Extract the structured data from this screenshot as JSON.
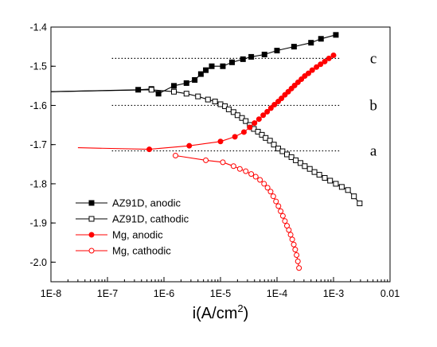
{
  "chart_data": {
    "type": "scatter",
    "title": "",
    "xlabel": "i(A/cm2)",
    "ylabel": "",
    "x_scale": "log",
    "xlim": [
      1e-08,
      0.01
    ],
    "ylim": [
      -2.05,
      -1.4
    ],
    "x_ticks": [
      {
        "value": 1e-08,
        "label": "1E-8"
      },
      {
        "value": 1e-07,
        "label": "1E-7"
      },
      {
        "value": 1e-06,
        "label": "1E-6"
      },
      {
        "value": 1e-05,
        "label": "1E-5"
      },
      {
        "value": 0.0001,
        "label": "1E-4"
      },
      {
        "value": 0.001,
        "label": "1E-3"
      },
      {
        "value": 0.01,
        "label": "0.01"
      }
    ],
    "y_ticks": [
      {
        "value": -1.4,
        "label": "-1.4"
      },
      {
        "value": -1.5,
        "label": "-1.5"
      },
      {
        "value": -1.6,
        "label": "-1.6"
      },
      {
        "value": -1.7,
        "label": "-1.7"
      },
      {
        "value": -1.8,
        "label": "-1.8"
      },
      {
        "value": -1.9,
        "label": "-1.9"
      },
      {
        "value": -2.0,
        "label": "-2.0"
      }
    ],
    "grid": false,
    "legend_position": "bottom-left",
    "reference_lines": [
      {
        "label": "c",
        "y": -1.48,
        "x_from": 1.2e-07,
        "x_to": 0.0013
      },
      {
        "label": "b",
        "y": -1.6,
        "x_from": 1.2e-07,
        "x_to": 0.0013
      },
      {
        "label": "a",
        "y": -1.716,
        "x_from": 1.2e-07,
        "x_to": 0.0013
      }
    ],
    "series": [
      {
        "name": "AZ91D, anodic",
        "color": "#000000",
        "marker": "square",
        "filled": true,
        "line_start": [
          1e-08,
          -1.565
        ],
        "x": [
          3.5e-07,
          6e-07,
          8e-07,
          1.5e-06,
          2.5e-06,
          3.5e-06,
          4.5e-06,
          5.5e-06,
          7e-06,
          1.1e-05,
          1.6e-05,
          2.5e-05,
          3.5e-05,
          6e-05,
          0.0001,
          0.0002,
          0.0004,
          0.0006,
          0.0011
        ],
        "y": [
          -1.56,
          -1.558,
          -1.57,
          -1.55,
          -1.543,
          -1.535,
          -1.52,
          -1.51,
          -1.5,
          -1.5,
          -1.49,
          -1.482,
          -1.476,
          -1.47,
          -1.46,
          -1.45,
          -1.44,
          -1.43,
          -1.42
        ]
      },
      {
        "name": "AZ91D, cathodic",
        "color": "#000000",
        "marker": "square",
        "filled": false,
        "line_start": [
          1e-08,
          -1.565
        ],
        "x": [
          6e-07,
          1.5e-06,
          2.5e-06,
          4e-06,
          6e-06,
          8e-06,
          1e-05,
          1.2e-05,
          1.4e-05,
          1.7e-05,
          2e-05,
          2.4e-05,
          2.8e-05,
          3.3e-05,
          3.9e-05,
          4.6e-05,
          5.4e-05,
          6.3e-05,
          7.5e-05,
          8.8e-05,
          0.000105,
          0.000125,
          0.00015,
          0.00018,
          0.000215,
          0.00026,
          0.00031,
          0.00038,
          0.00046,
          0.00056,
          0.0007,
          0.00087,
          0.0011,
          0.0014,
          0.0018,
          0.0023,
          0.0029
        ],
        "y": [
          -1.56,
          -1.565,
          -1.57,
          -1.577,
          -1.585,
          -1.59,
          -1.597,
          -1.602,
          -1.61,
          -1.617,
          -1.625,
          -1.632,
          -1.64,
          -1.65,
          -1.66,
          -1.667,
          -1.675,
          -1.683,
          -1.69,
          -1.7,
          -1.71,
          -1.717,
          -1.725,
          -1.732,
          -1.74,
          -1.747,
          -1.755,
          -1.762,
          -1.77,
          -1.777,
          -1.785,
          -1.792,
          -1.8,
          -1.808,
          -1.816,
          -1.832,
          -1.85
        ]
      },
      {
        "name": "Mg, anodic",
        "color": "#ff0000",
        "marker": "circle",
        "filled": true,
        "line_start": [
          3e-08,
          -1.708
        ],
        "x": [
          5.5e-07,
          2.8e-06,
          1e-05,
          1.8e-05,
          2.6e-05,
          3.3e-05,
          4e-05,
          4.8e-05,
          5.7e-05,
          6.7e-05,
          7.8e-05,
          9e-05,
          0.000105,
          0.00012,
          0.000138,
          0.000158,
          0.00018,
          0.000205,
          0.000235,
          0.00027,
          0.00031,
          0.00036,
          0.00042,
          0.0005,
          0.00059,
          0.0007,
          0.00083,
          0.001
        ],
        "y": [
          -1.712,
          -1.703,
          -1.692,
          -1.68,
          -1.668,
          -1.656,
          -1.645,
          -1.635,
          -1.625,
          -1.616,
          -1.607,
          -1.598,
          -1.59,
          -1.582,
          -1.573,
          -1.565,
          -1.557,
          -1.549,
          -1.541,
          -1.533,
          -1.525,
          -1.518,
          -1.51,
          -1.502,
          -1.495,
          -1.488,
          -1.48,
          -1.472
        ]
      },
      {
        "name": "Mg, cathodic",
        "color": "#ff0000",
        "marker": "circle",
        "filled": false,
        "line_start": [
          1.5e-06,
          -1.728
        ],
        "x": [
          1.6e-06,
          5.5e-06,
          1.1e-05,
          1.7e-05,
          2.2e-05,
          2.8e-05,
          3.5e-05,
          4.2e-05,
          5e-05,
          5.9e-05,
          6.8e-05,
          7.7e-05,
          8.6e-05,
          9.6e-05,
          0.000106,
          0.000116,
          0.000127,
          0.000138,
          0.00015,
          0.000162,
          0.000174,
          0.000186,
          0.000198,
          0.00021,
          0.000222,
          0.000234,
          0.000245
        ],
        "y": [
          -1.728,
          -1.74,
          -1.745,
          -1.755,
          -1.762,
          -1.768,
          -1.775,
          -1.782,
          -1.79,
          -1.8,
          -1.81,
          -1.82,
          -1.832,
          -1.845,
          -1.857,
          -1.87,
          -1.882,
          -1.895,
          -1.907,
          -1.918,
          -1.93,
          -1.942,
          -1.955,
          -1.968,
          -1.982,
          -1.998,
          -2.015
        ]
      }
    ]
  }
}
